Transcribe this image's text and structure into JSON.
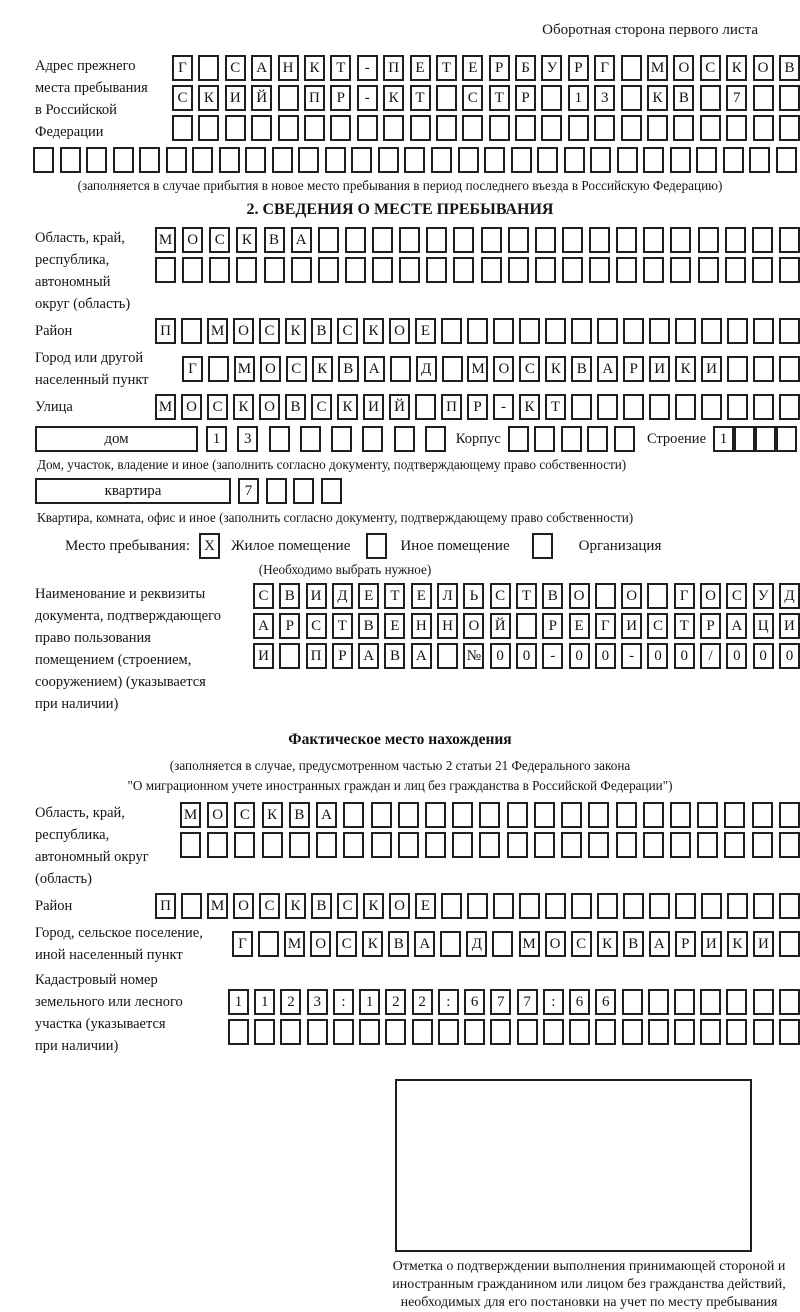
{
  "page": {
    "header_note": "Оборотная сторона первого листа"
  },
  "prev_address": {
    "label": "Адрес прежнего\nместа пребывания\nв Российской\nФедерации",
    "rows": [
      {
        "t": "Г САНКТ-ПЕТЕРБУРГ МОСКОВ",
        "n": 24
      },
      {
        "t": "СКИЙ ПР-КТ СТР 13 КВ 7",
        "n": 24
      },
      {
        "t": "",
        "n": 24
      }
    ],
    "overflow_row": {
      "t": "",
      "n": 29
    },
    "caption": "(заполняется в случае прибытия в новое место пребывания в период последнего въезда в Российскую Федерацию)"
  },
  "section2": {
    "title": "2. СВЕДЕНИЯ О МЕСТЕ ПРЕБЫВАНИЯ",
    "oblast": {
      "label": "Область, край,\nреспублика,\nавтономный\nокруг (область)",
      "rows": [
        {
          "t": "МОСКВА",
          "n": 24
        },
        {
          "t": "",
          "n": 24
        }
      ]
    },
    "raion": {
      "label": "Район",
      "row": {
        "t": "П МОСКВСКОЕ",
        "n": 25
      }
    },
    "gorod": {
      "label": "Город или другой\nнаселенный пункт",
      "row": {
        "t": "Г МОСКВА Д МОСКВАРИКИ",
        "n": 24
      }
    },
    "ulitsa": {
      "label": "Улица",
      "row": {
        "t": "МОСКОВСКИЙ ПР-КТ",
        "n": 25
      }
    },
    "dom": {
      "box_label": "дом",
      "cells": {
        "t": "13",
        "n": 8
      },
      "korpus_label": "Корпус",
      "korpus_cells": {
        "t": "",
        "n": 5
      },
      "stroenie_label": "Строение",
      "stroenie_cells": {
        "t": "1",
        "n": 4
      },
      "caption": "Дом, участок, владение и иное (заполнить согласно документу, подтверждающему право собственности)"
    },
    "kvartira": {
      "box_label": "квартира",
      "cells": {
        "t": "7",
        "n": 4
      },
      "caption": "Квартира, комната, офис и иное (заполнить согласно документу, подтверждающему право собственности)"
    },
    "mesto": {
      "label": "Место пребывания:",
      "options": [
        {
          "label": "Жилое помещение",
          "checked": "X"
        },
        {
          "label": "Иное помещение",
          "checked": ""
        },
        {
          "label": "Организация",
          "checked": ""
        }
      ],
      "note": "(Необходимо выбрать нужное)"
    },
    "doc": {
      "label": "Наименование и реквизиты\nдокумента, подтверждающего\nправо пользования\nпомещением (строением,\nсооружением) (указывается\nпри наличии)",
      "rows": [
        {
          "t": "СВИДЕТЕЛЬСТВО О ГОСУД",
          "n": 21
        },
        {
          "t": "АРСТВЕННОЙ РЕГИСТРАЦИ",
          "n": 21
        },
        {
          "t": "И ПРАВА №00-00-00/000",
          "n": 21
        }
      ]
    }
  },
  "fact": {
    "title": "Фактическое место нахождения",
    "caption1": "(заполняется в случае, предусмотренном частью 2 статьи 21 Федерального закона",
    "caption2": "\"О миграционном учете иностранных граждан и лиц без гражданства в Российской Федерации\")",
    "oblast": {
      "label": "Область, край,\nреспублика,\nавтономный округ\n(область)",
      "rows": [
        {
          "t": "МОСКВА",
          "n": 23
        },
        {
          "t": "",
          "n": 23
        }
      ]
    },
    "raion": {
      "label": "Район",
      "row": {
        "t": "П МОСКВСКОЕ",
        "n": 25
      }
    },
    "gorod": {
      "label": "Город, сельское поселение,\nиной населенный пункт",
      "row": {
        "t": "Г МОСКВА Д МОСКВАРИКИ",
        "n": 22
      }
    },
    "kadastr": {
      "label": "Кадастровый номер\nземельного или лесного\nучастка (указывается\nпри наличии)",
      "rows": [
        {
          "t": "1123:122:677:66",
          "n": 22
        },
        {
          "t": "",
          "n": 22
        }
      ]
    },
    "stamp_caption": "Отметка о подтверждении выполнения принимающей стороной и иностранным гражданином или лицом без гражданства действий, необходимых для его постановки на учет по месту пребывания"
  }
}
